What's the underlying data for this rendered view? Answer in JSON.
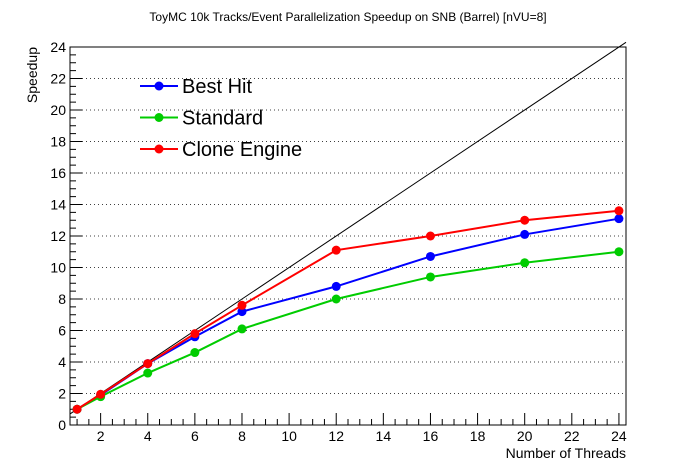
{
  "chart_data": {
    "type": "line",
    "title": "ToyMC 10k Tracks/Event Parallelization Speedup on SNB (Barrel) [nVU=8]",
    "xlabel": "Number of Threads",
    "ylabel": "Speedup",
    "xlim": [
      0.7,
      24.3
    ],
    "ylim": [
      0,
      24
    ],
    "x_ticks": [
      2,
      4,
      6,
      8,
      10,
      12,
      14,
      16,
      18,
      20,
      22,
      24
    ],
    "y_ticks": [
      0,
      2,
      4,
      6,
      8,
      10,
      12,
      14,
      16,
      18,
      20,
      22,
      24
    ],
    "grid": "horizontal dotted",
    "legend_position": "top-left",
    "ideal_line": {
      "x": [
        0.7,
        24.3
      ],
      "y": [
        0.7,
        24.3
      ],
      "color": "#000000"
    },
    "series": [
      {
        "name": "Best Hit",
        "color": "#0000ff",
        "x": [
          1,
          2,
          4,
          6,
          8,
          12,
          16,
          20,
          24
        ],
        "y": [
          1.0,
          1.9,
          3.9,
          5.6,
          7.2,
          8.8,
          10.7,
          12.1,
          13.1
        ]
      },
      {
        "name": "Standard",
        "color": "#00cc00",
        "x": [
          1,
          2,
          4,
          6,
          8,
          12,
          16,
          20,
          24
        ],
        "y": [
          1.0,
          1.8,
          3.3,
          4.6,
          6.1,
          8.0,
          9.4,
          10.3,
          11.0
        ]
      },
      {
        "name": "Clone Engine",
        "color": "#ff0000",
        "x": [
          1,
          2,
          4,
          6,
          8,
          12,
          16,
          20,
          24
        ],
        "y": [
          1.0,
          1.95,
          3.9,
          5.8,
          7.6,
          11.1,
          12.0,
          13.0,
          13.6
        ]
      }
    ]
  }
}
